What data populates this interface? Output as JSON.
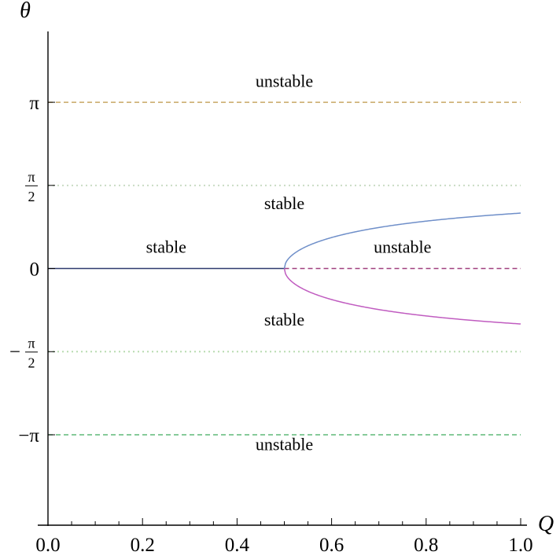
{
  "chart_data": {
    "type": "line",
    "title": "",
    "xlabel": "Q",
    "ylabel": "θ",
    "xlim": [
      0,
      1
    ],
    "ylim": [
      -4.85,
      4.48
    ],
    "grid": false,
    "x_ticks": [
      {
        "value": 0.0,
        "label": "0.0"
      },
      {
        "value": 0.2,
        "label": "0.2"
      },
      {
        "value": 0.4,
        "label": "0.4"
      },
      {
        "value": 0.6,
        "label": "0.6"
      },
      {
        "value": 0.8,
        "label": "0.8"
      },
      {
        "value": 1.0,
        "label": "1.0"
      }
    ],
    "x_minor_tick_step": 0.05,
    "y_ticks": [
      {
        "value": 3.14159,
        "label": "π",
        "style": "pi"
      },
      {
        "value": 1.5708,
        "label_num": "π",
        "label_den": "2",
        "style": "frac"
      },
      {
        "value": 0,
        "label": "0",
        "style": "plain"
      },
      {
        "value": -1.5708,
        "label_sign": "−",
        "label_num": "π",
        "label_den": "2",
        "style": "negfrac"
      },
      {
        "value": -3.14159,
        "label": "−π",
        "style": "pi"
      }
    ],
    "series": [
      {
        "value": 3.14159,
        "color": "#c8a864",
        "dash": "dashed",
        "x_range": [
          0,
          1
        ]
      },
      {
        "value": 1.5708,
        "color": "#c9dcc4",
        "dash": "dotted",
        "x_range": [
          0,
          1
        ]
      },
      {
        "value": -1.5708,
        "color": "#b8dcb0",
        "dash": "dotted",
        "x_range": [
          0,
          1
        ]
      },
      {
        "value": -3.14159,
        "color": "#5fb878",
        "dash": "dashed",
        "x_range": [
          0,
          1
        ]
      },
      {
        "value": 0,
        "color": "#2f3a6f",
        "dash": "solid",
        "x_range": [
          0,
          0.5
        ]
      },
      {
        "value": 0,
        "color": "#a0407f",
        "dash": "dashed",
        "x_range": [
          0.5,
          1
        ]
      },
      {
        "function": "arccos_half_over_q",
        "color": "#6f8fc9",
        "dash": "solid",
        "x_range": [
          0.5,
          1
        ]
      },
      {
        "function": "neg_arccos_half_over_q",
        "color": "#c05cc0",
        "dash": "solid",
        "x_range": [
          0.5,
          1
        ]
      }
    ],
    "annotations": [
      {
        "text": "unstable",
        "x": 0.5,
        "y": 3.43
      },
      {
        "text": "stable",
        "x": 0.5,
        "y": 1.12
      },
      {
        "text": "stable",
        "x": 0.25,
        "y": 0.3
      },
      {
        "text": "unstable",
        "x": 0.75,
        "y": 0.3
      },
      {
        "text": "stable",
        "x": 0.5,
        "y": -1.08
      },
      {
        "text": "unstable",
        "x": 0.5,
        "y": -3.43
      }
    ]
  }
}
